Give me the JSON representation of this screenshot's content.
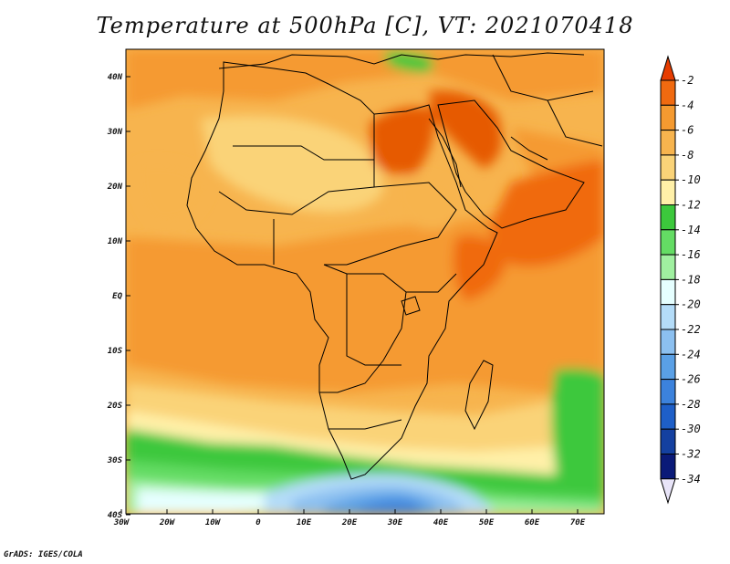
{
  "title": "Temperature at 500hPa [C], VT: 2021070418",
  "credit": "GrADS: IGES/COLA",
  "map": {
    "region": "Africa",
    "lon_range": [
      -30,
      75
    ],
    "lat_range": [
      -40,
      45
    ],
    "x_ticks": [
      "30W",
      "20W",
      "10W",
      "0",
      "10E",
      "20E",
      "30E",
      "40E",
      "50E",
      "60E",
      "70E"
    ],
    "y_ticks": [
      "40N",
      "30N",
      "20N",
      "10N",
      "EQ",
      "10S",
      "20S",
      "30S",
      "40S"
    ]
  },
  "colorbar": {
    "labels": [
      "-2",
      "-4",
      "-6",
      "-8",
      "-10",
      "-12",
      "-14",
      "-16",
      "-18",
      "-20",
      "-22",
      "-24",
      "-26",
      "-28",
      "-30",
      "-32",
      "-34"
    ],
    "colors": [
      "#e63c00",
      "#f06a10",
      "#f59a30",
      "#f7b44e",
      "#fad378",
      "#fff0a8",
      "#3cc83c",
      "#64dc64",
      "#a0f0a0",
      "#e6ffff",
      "#b4dcf8",
      "#8cc0f0",
      "#5aa0e6",
      "#3c82dc",
      "#1e5fc8",
      "#1440a0",
      "#0a1a78",
      "#e8e4f8"
    ]
  }
}
